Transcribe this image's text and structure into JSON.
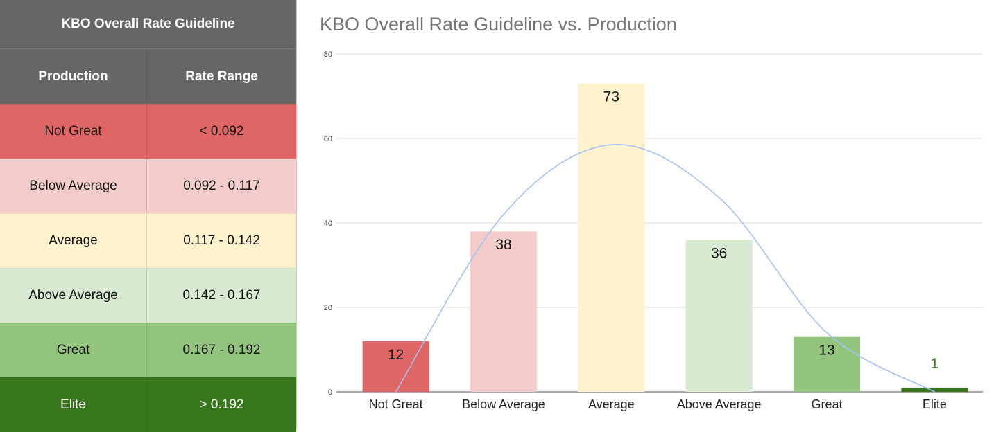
{
  "table": {
    "title": "KBO Overall Rate Guideline",
    "headers": [
      "Production",
      "Rate Range"
    ],
    "rows": [
      {
        "production": "Not Great",
        "range": "< 0.092",
        "bg": "#e06666",
        "fg": "#111111"
      },
      {
        "production": "Below Average",
        "range": "0.092 - 0.117",
        "bg": "#f4cccc",
        "fg": "#111111"
      },
      {
        "production": "Average",
        "range": "0.117 - 0.142",
        "bg": "#fff2cc",
        "fg": "#111111"
      },
      {
        "production": "Above Average",
        "range": "0.142 - 0.167",
        "bg": "#d9ead3",
        "fg": "#111111"
      },
      {
        "production": "Great",
        "range": "0.167 - 0.192",
        "bg": "#93c47d",
        "fg": "#111111"
      },
      {
        "production": "Elite",
        "range": "> 0.192",
        "bg": "#38761d",
        "fg": "#ffffff"
      }
    ]
  },
  "chart_data": {
    "type": "bar",
    "title": "KBO Overall Rate Guideline vs. Production",
    "categories": [
      "Not Great",
      "Below Average",
      "Average",
      "Above Average",
      "Great",
      "Elite"
    ],
    "values": [
      12,
      38,
      73,
      36,
      13,
      1
    ],
    "colors": [
      "#e06666",
      "#f4cccc",
      "#fff2cc",
      "#d9ead3",
      "#93c47d",
      "#38761d"
    ],
    "label_colors": [
      "#111111",
      "#111111",
      "#111111",
      "#111111",
      "#111111",
      "#38761d"
    ],
    "ylim": [
      0,
      80
    ],
    "yticks": [
      0,
      20,
      40,
      60,
      80
    ],
    "xlabel": "",
    "ylabel": "",
    "grid": true,
    "trendline": {
      "type": "polynomial",
      "color": "#a4c2f4",
      "points": [
        [
          0,
          0
        ],
        [
          1,
          42
        ],
        [
          2,
          58.5
        ],
        [
          3,
          46
        ],
        [
          4,
          14
        ],
        [
          5,
          0
        ]
      ]
    }
  }
}
